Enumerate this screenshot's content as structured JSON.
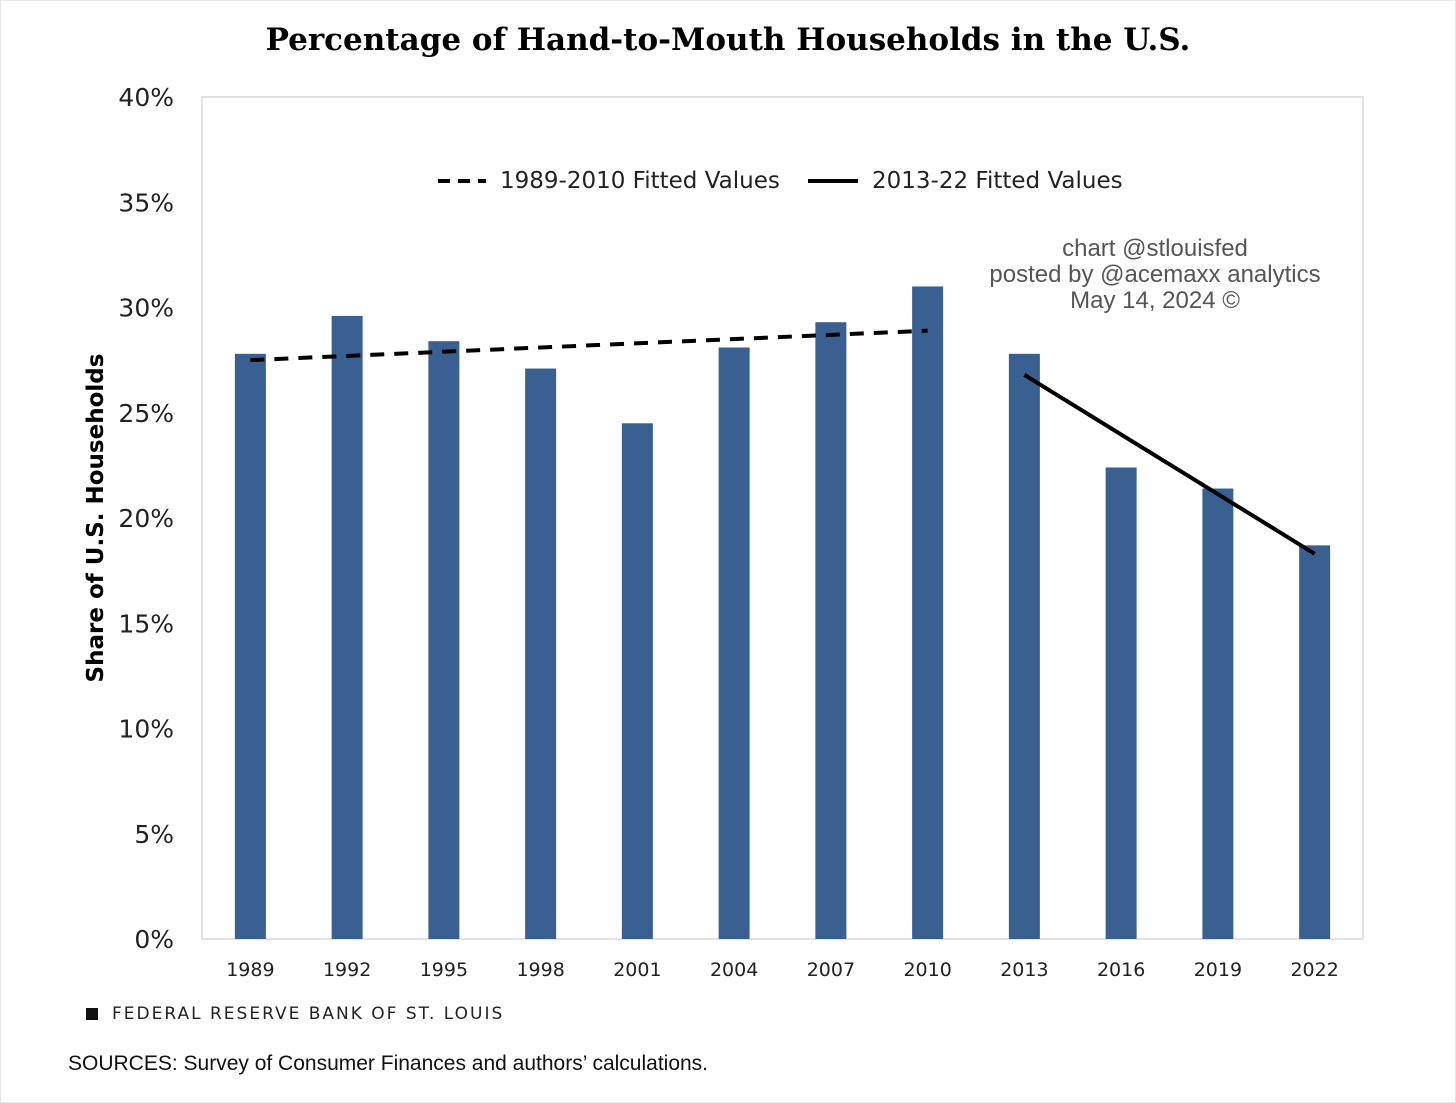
{
  "title": "Percentage of Hand-to-Mouth Households in the U.S.",
  "legend": {
    "dashed_label": "1989-2010 Fitted Values",
    "solid_label": "2013-22 Fitted Values"
  },
  "watermark": {
    "line1": "chart @stlouisfed",
    "line2": "posted by @acemaxx analytics",
    "line3": "May 14, 2024 ©"
  },
  "footer": {
    "brand": "FEDERAL RESERVE BANK OF ST. LOUIS",
    "sources": "SOURCES: Survey of Consumer Finances and authors’ calculations."
  },
  "colors": {
    "bar": "#3a6092",
    "fit_line": "#000000"
  },
  "chart_data": {
    "type": "bar",
    "title": "Percentage of Hand-to-Mouth Households in the U.S.",
    "xlabel": "",
    "ylabel": "Share of U.S. Households",
    "categories": [
      "1989",
      "1992",
      "1995",
      "1998",
      "2001",
      "2004",
      "2007",
      "2010",
      "2013",
      "2016",
      "2019",
      "2022"
    ],
    "series": [
      {
        "values": [
          27.8,
          29.6,
          28.4,
          27.1,
          24.5,
          28.1,
          29.3,
          31.0,
          27.8,
          22.4,
          21.4,
          18.7
        ]
      }
    ],
    "fitted_lines": [
      {
        "name": "1989-2010 Fitted Values",
        "style": "dashed",
        "from": {
          "x": "1989",
          "y": 27.5
        },
        "to": {
          "x": "2010",
          "y": 28.9
        }
      },
      {
        "name": "2013-22 Fitted Values",
        "style": "solid",
        "from": {
          "x": "2013",
          "y": 26.8
        },
        "to": {
          "x": "2022",
          "y": 18.3
        }
      }
    ],
    "ylim": [
      0,
      40
    ],
    "yticks": [
      0,
      5,
      10,
      15,
      20,
      25,
      30,
      35,
      40
    ],
    "ytick_labels": [
      "0%",
      "5%",
      "10%",
      "15%",
      "20%",
      "25%",
      "30%",
      "35%",
      "40%"
    ],
    "grid": false,
    "legend_position": "top"
  }
}
